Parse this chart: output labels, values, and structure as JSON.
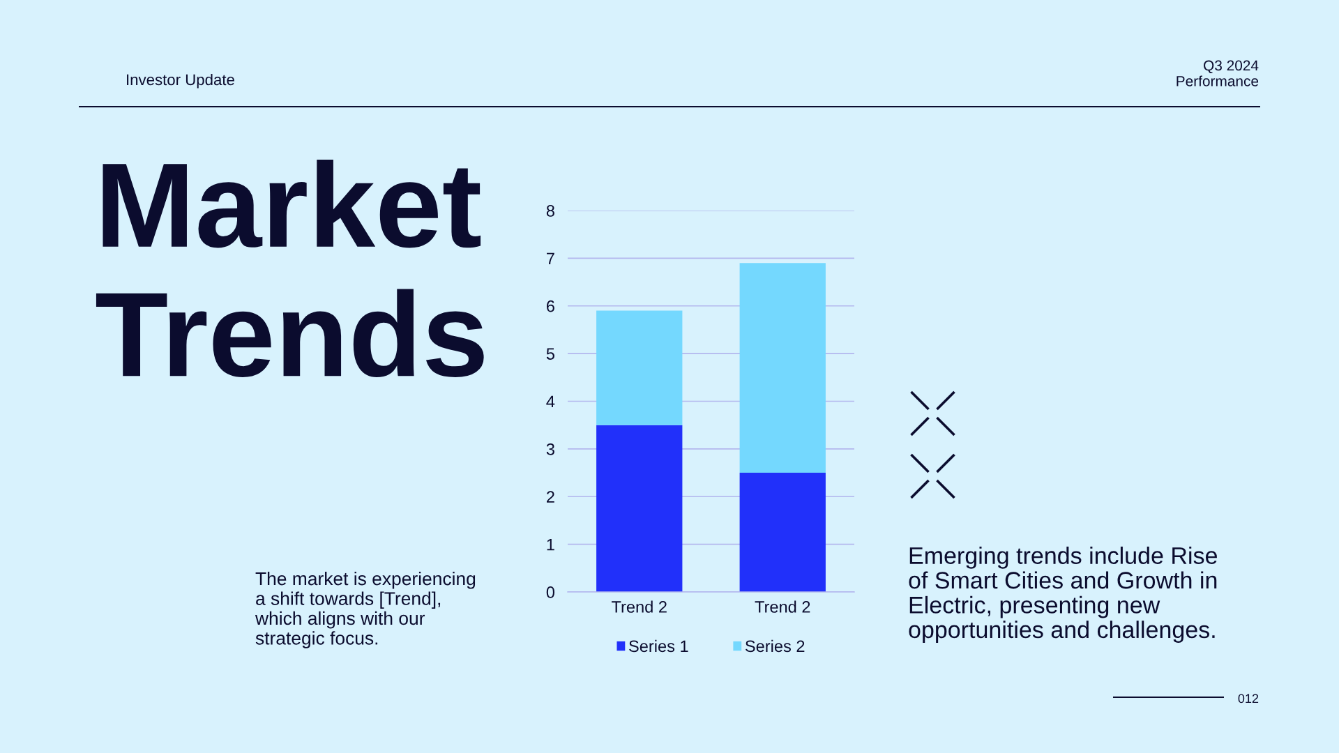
{
  "chart_data": {
    "type": "bar",
    "title": "Market\nTrends",
    "categories": [
      "Trend 2",
      "Trend 2"
    ],
    "series": [
      {
        "name": "Series 1",
        "color": "#2130fa",
        "values": [
          3.5,
          2.5
        ]
      },
      {
        "name": "Series 2",
        "color": "#74d8fe",
        "values": [
          2.4,
          4.4
        ]
      }
    ],
    "stacked": true,
    "ylim": [
      0,
      8
    ],
    "yticks": [
      0,
      1,
      2,
      3,
      4,
      5,
      6,
      7,
      8
    ],
    "grid": "y",
    "legend": "bottom",
    "annotations": [
      "Investor Update",
      "Q3 2024\nPerformance",
      "The market is experiencing\na shift towards [Trend],\nwhich aligns with our\nstrategic focus.",
      "Emerging trends include Rise\nof Smart Cities and Growth in\nElectric, presenting new\nopportunities and challenges.",
      "012"
    ]
  }
}
